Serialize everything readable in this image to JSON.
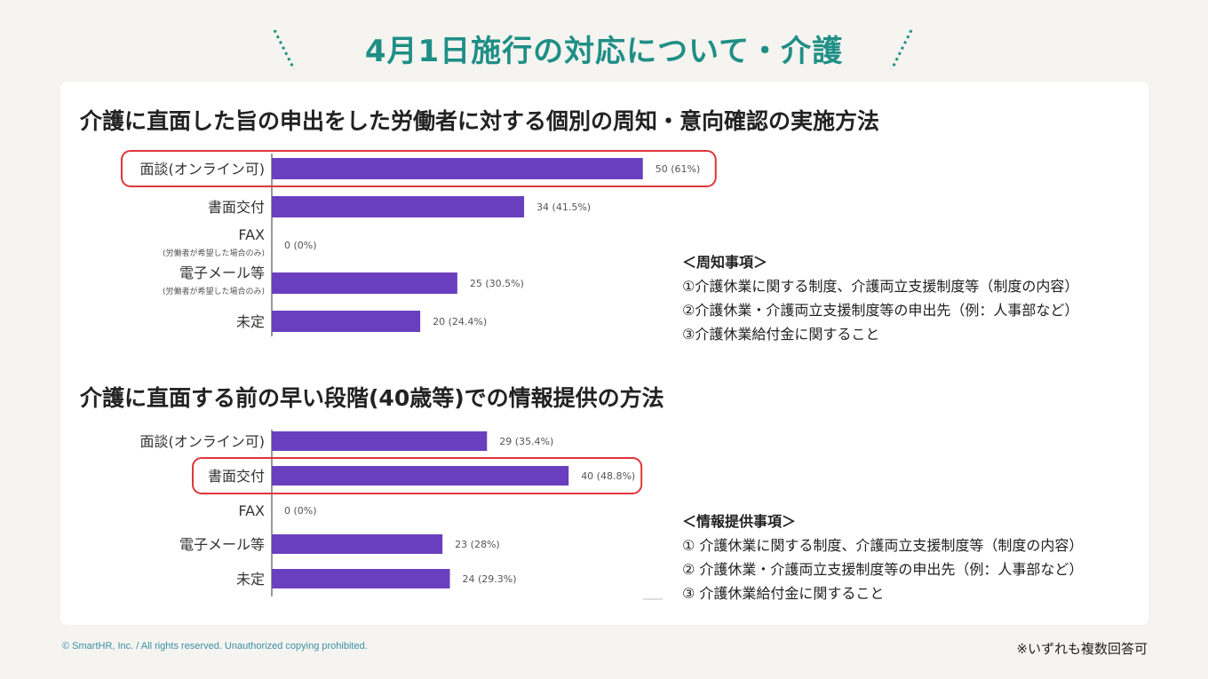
{
  "slide": {
    "title": "4月1日施行の対応について・介護",
    "accent_color": "#1f8f86",
    "copyright": "© SmartHR, Inc. / All rights reserved. Unauthorized copying prohibited.",
    "footnote": "※いずれも複数回答可"
  },
  "section1": {
    "heading": "介護に直面した旨の申出をした労働者に対する個別の周知・意向確認の実施方法",
    "notes": {
      "title": "＜周知事項＞",
      "items": [
        "①介護休業に関する制度、介護両立支援制度等（制度の内容）",
        "②介護休業・介護両立支援制度等の申出先（例：人事部など）",
        "③介護休業給付金に関すること"
      ]
    }
  },
  "section2": {
    "heading": "介護に直面する前の早い段階(40歳等)での情報提供の方法",
    "notes": {
      "title": "＜情報提供事項＞",
      "items": [
        "① 介護休業に関する制度、介護両立支援制度等（制度の内容）",
        "② 介護休業・介護両立支援制度等の申出先（例：人事部など）",
        "③ 介護休業給付金に関すること"
      ]
    }
  },
  "chart_data": [
    {
      "type": "bar",
      "orientation": "horizontal",
      "title": "介護に直面した旨の申出をした労働者に対する個別の周知・意向確認の実施方法",
      "bar_color": "#6a3fbf",
      "highlight_color": "#e0353a",
      "categories": [
        "面談(オンライン可)",
        "書面交付",
        "FAX",
        "電子メール等",
        "未定"
      ],
      "sublabels": [
        "",
        "",
        "(労働者が希望した場合のみ)",
        "(労働者が希望した場合のみ)",
        ""
      ],
      "values": [
        50,
        34,
        0,
        25,
        20
      ],
      "value_labels": [
        "50 (61%)",
        "34 (41.5%)",
        "0 (0%)",
        "25 (30.5%)",
        "20 (24.4%)"
      ],
      "highlight": [
        0
      ],
      "xlim": [
        0,
        62
      ]
    },
    {
      "type": "bar",
      "orientation": "horizontal",
      "title": "介護に直面する前の早い段階(40歳等)での情報提供の方法",
      "bar_color": "#6a3fbf",
      "highlight_color": "#e0353a",
      "categories": [
        "面談(オンライン可)",
        "書面交付",
        "FAX",
        "電子メール等",
        "未定"
      ],
      "sublabels": [
        "",
        "",
        "",
        "",
        ""
      ],
      "values": [
        29,
        40,
        0,
        23,
        24
      ],
      "value_labels": [
        "29 (35.4%)",
        "40 (48.8%)",
        "0 (0%)",
        "23 (28%)",
        "24 (29.3%)"
      ],
      "highlight": [
        1
      ],
      "xlim": [
        0,
        62
      ]
    }
  ]
}
